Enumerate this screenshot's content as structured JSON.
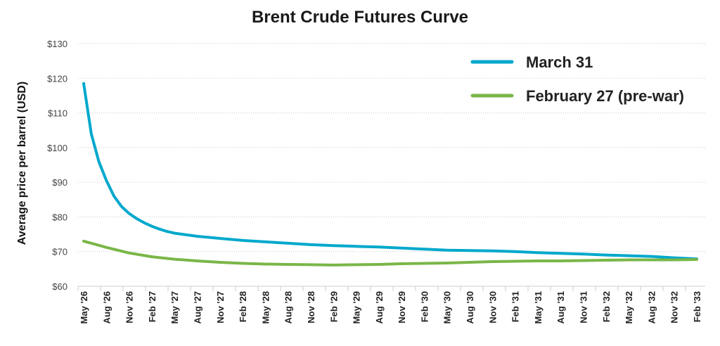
{
  "chart_data": {
    "type": "line",
    "title": "Brent Crude Futures Curve",
    "ylabel": "Average price per barrel (USD)",
    "xlabel": "",
    "ylim": [
      60,
      130
    ],
    "yticks": [
      "$60",
      "$70",
      "$80",
      "$90",
      "$100",
      "$110",
      "$120",
      "$130"
    ],
    "ytick_values": [
      60,
      70,
      80,
      90,
      100,
      110,
      120,
      130
    ],
    "xticks": [
      "May '26",
      "Aug '26",
      "Nov '26",
      "Feb '27",
      "May '27",
      "Aug '27",
      "Nov '27",
      "Feb '28",
      "May '28",
      "Aug '28",
      "Nov '28",
      "Feb '29",
      "May '29",
      "Aug '29",
      "Nov '29",
      "Feb '30",
      "May '30",
      "Aug '30",
      "Nov '30",
      "Feb '31",
      "May '31",
      "Aug '31",
      "Nov '31",
      "Feb '32",
      "May '32",
      "Aug '32",
      "Nov '32",
      "Feb '33"
    ],
    "x_unit": "months since May '26",
    "grid": true,
    "legend_position": "top-right",
    "series": [
      {
        "name": "March 31",
        "color": "#00a8cc",
        "x": [
          0,
          1,
          2,
          3,
          4,
          5,
          6,
          7,
          8,
          9,
          10,
          11,
          12,
          15,
          18,
          21,
          24,
          27,
          30,
          33,
          36,
          39,
          42,
          45,
          48,
          51,
          54,
          57,
          60,
          63,
          66,
          69,
          72,
          75,
          78,
          81
        ],
        "values": [
          118.5,
          104,
          96,
          90.5,
          86,
          83,
          81,
          79.5,
          78.3,
          77.3,
          76.5,
          75.8,
          75.3,
          74.4,
          73.8,
          73.2,
          72.8,
          72.4,
          72,
          71.7,
          71.5,
          71.3,
          71,
          70.7,
          70.4,
          70.3,
          70.2,
          70,
          69.7,
          69.5,
          69.3,
          69,
          68.8,
          68.6,
          68.2,
          67.9
        ]
      },
      {
        "name": "February 27 (pre-war)",
        "color": "#7ab648",
        "x": [
          0,
          3,
          6,
          9,
          12,
          15,
          18,
          21,
          24,
          27,
          30,
          33,
          36,
          39,
          42,
          45,
          48,
          51,
          54,
          57,
          60,
          63,
          66,
          69,
          72,
          75,
          78,
          81
        ],
        "values": [
          73,
          71.2,
          69.6,
          68.5,
          67.8,
          67.3,
          66.9,
          66.6,
          66.4,
          66.3,
          66.2,
          66.1,
          66.2,
          66.3,
          66.5,
          66.6,
          66.7,
          66.9,
          67.1,
          67.2,
          67.3,
          67.3,
          67.4,
          67.5,
          67.6,
          67.6,
          67.6,
          67.7
        ]
      }
    ]
  }
}
